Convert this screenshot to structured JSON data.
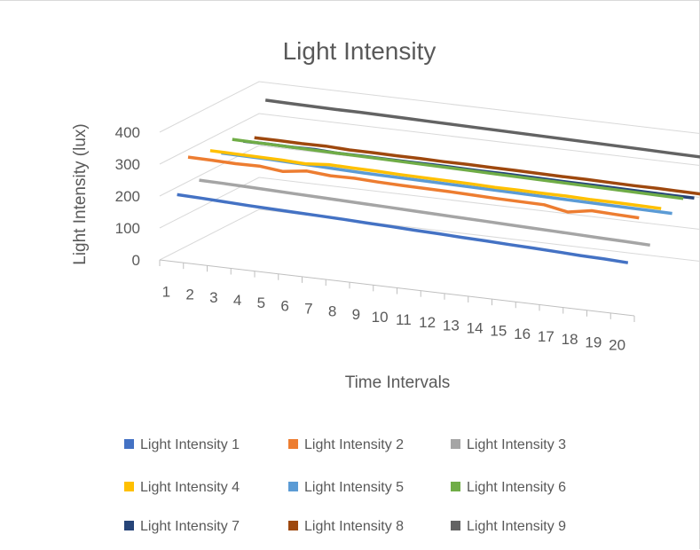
{
  "chart_data": {
    "type": "line",
    "style": "3d-line",
    "title": "Light Intensity",
    "xlabel": "Time Intervals",
    "ylabel": "Light Intensity (lux)",
    "ylim": [
      0,
      400
    ],
    "yticks": [
      "0",
      "100",
      "200",
      "300",
      "400"
    ],
    "grid": true,
    "legend_position": "bottom",
    "categories": [
      "1",
      "2",
      "3",
      "4",
      "5",
      "6",
      "7",
      "8",
      "9",
      "10",
      "11",
      "12",
      "13",
      "14",
      "15",
      "16",
      "17",
      "18",
      "19",
      "20"
    ],
    "series": [
      {
        "name": "Light Intensity 1",
        "color": "#4472c4",
        "values": [
          200,
          198,
          195,
          192,
          190,
          188,
          186,
          184,
          181,
          179,
          176,
          174,
          171,
          169,
          166,
          164,
          161,
          158,
          156,
          153
        ]
      },
      {
        "name": "Light Intensity 2",
        "color": "#ed7d31",
        "values": [
          300,
          299,
          297,
          298,
          290,
          300,
          294,
          295,
          292,
          290,
          289,
          288,
          286,
          284,
          283,
          282,
          268,
          281,
          278,
          276
        ]
      },
      {
        "name": "Light Intensity 3",
        "color": "#a5a5a5",
        "values": [
          210,
          209,
          207,
          205,
          203,
          201,
          199,
          197,
          195,
          193,
          191,
          189,
          187,
          185,
          183,
          181,
          179,
          177,
          175,
          173
        ]
      },
      {
        "name": "Light Intensity 4",
        "color": "#ffc000",
        "values": [
          285,
          284,
          283,
          282,
          279,
          285,
          283,
          282,
          280,
          279,
          278,
          277,
          275,
          275,
          274,
          274,
          272,
          272,
          271,
          270
        ]
      },
      {
        "name": "Light Intensity 5",
        "color": "#5b9bd5",
        "values": [
          260,
          259,
          258,
          256,
          254,
          252,
          250,
          249,
          248,
          247,
          246,
          245,
          244,
          243,
          242,
          241,
          240,
          239,
          238,
          237
        ]
      },
      {
        "name": "Light Intensity 6",
        "color": "#70ad47",
        "values": [
          285,
          284,
          283,
          282,
          281,
          280,
          279,
          278,
          277,
          276,
          275,
          274,
          273,
          272,
          271,
          270,
          269,
          268,
          267,
          266
        ]
      },
      {
        "name": "Light Intensity 7",
        "color": "#264478",
        "values": [
          262,
          262,
          261,
          262,
          259,
          259,
          258,
          258,
          258,
          257,
          256,
          256,
          255,
          254,
          253,
          253,
          252,
          251,
          250,
          250
        ]
      },
      {
        "name": "Light Intensity 8",
        "color": "#9e480e",
        "values": [
          255,
          255,
          254,
          255,
          252,
          252,
          251,
          251,
          250,
          250,
          249,
          249,
          248,
          247,
          247,
          246,
          245,
          245,
          244,
          243
        ]
      },
      {
        "name": "Light Intensity 9",
        "color": "#636363",
        "values": [
          355,
          354,
          353,
          352,
          352,
          351,
          350,
          349,
          348,
          347,
          346,
          345,
          344,
          343,
          342,
          341,
          340,
          339,
          338,
          337
        ]
      }
    ]
  }
}
